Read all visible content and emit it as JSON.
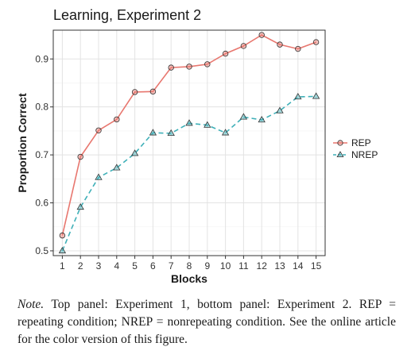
{
  "chart_data": {
    "type": "line",
    "title": "Learning, Experiment 2",
    "xlabel": "Blocks",
    "ylabel": "Proportion Correct",
    "x": [
      1,
      2,
      3,
      4,
      5,
      6,
      7,
      8,
      9,
      10,
      11,
      12,
      13,
      14,
      15
    ],
    "xticks": [
      "1",
      "2",
      "3",
      "4",
      "5",
      "6",
      "7",
      "8",
      "9",
      "10",
      "11",
      "12",
      "13",
      "14",
      "15"
    ],
    "yticks": [
      "0.5",
      "0.6",
      "0.7",
      "0.8",
      "0.9"
    ],
    "ylim": [
      0.49,
      0.96
    ],
    "xlim": [
      0.5,
      15.5
    ],
    "grid": true,
    "legend_position": "right",
    "series": [
      {
        "name": "REP",
        "color": "#e8776f",
        "marker": "circle",
        "line_style": "solid",
        "values": [
          0.532,
          0.696,
          0.751,
          0.774,
          0.831,
          0.832,
          0.882,
          0.884,
          0.889,
          0.911,
          0.927,
          0.95,
          0.93,
          0.921,
          0.935
        ]
      },
      {
        "name": "NREP",
        "color": "#3fb0b8",
        "marker": "triangle",
        "line_style": "dashed",
        "values": [
          0.5,
          0.591,
          0.653,
          0.673,
          0.703,
          0.746,
          0.745,
          0.766,
          0.762,
          0.746,
          0.779,
          0.773,
          0.792,
          0.821,
          0.822
        ]
      }
    ]
  },
  "note": {
    "label": "Note.",
    "text": " Top panel: Experiment 1, bottom panel: Experiment 2. REP = repeating condition; NREP = nonrepeating condition. See the online article for the color version of this figure."
  }
}
